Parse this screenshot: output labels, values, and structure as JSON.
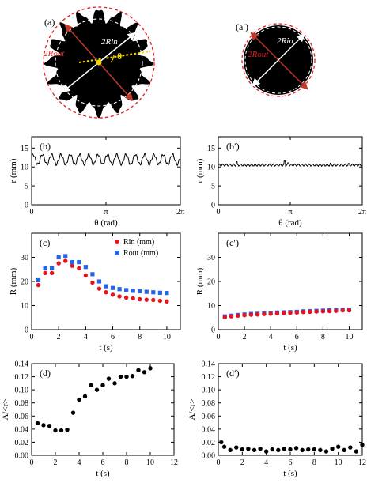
{
  "panels": {
    "a": {
      "label": "(a)",
      "rout_label": "2Rout",
      "rin_label": "2Rin",
      "theta_label": "θ",
      "colors": {
        "blob": "#000000",
        "outer_circle": "#e02020",
        "inner_circle": "#ffffff",
        "rout_arrow": "#c0392b",
        "rin_arrow": "#ffffff",
        "theta_line": "#f2d600"
      }
    },
    "a_prime": {
      "label": "(a′)",
      "rout_label": "2Rout",
      "rin_label": "2Rin",
      "colors": {
        "blob": "#000000",
        "outer_circle": "#e02020",
        "inner_circle": "#ffffff",
        "rout_arrow": "#c0392b",
        "rin_arrow": "#ffffff"
      }
    }
  },
  "chart_data": [
    {
      "id": "b",
      "type": "line",
      "panel_label": "(b)",
      "xlabel": "θ (rad)",
      "ylabel": "r (mm)",
      "xlim": [
        0,
        6.2832
      ],
      "ylim": [
        0,
        18
      ],
      "x_tick_labels": [
        "0",
        "π",
        "2π"
      ],
      "y_tick_labels": [
        "0",
        "5",
        "10",
        "15"
      ],
      "series": [
        {
          "x_range": [
            0,
            6.2832
          ],
          "mean": 12.0,
          "amplitude": 1.3,
          "periods": 16,
          "phase": 0.6,
          "color": "#000000"
        }
      ]
    },
    {
      "id": "b_prime",
      "type": "line",
      "panel_label": "(b′)",
      "xlabel": "θ (rad)",
      "ylabel": "r (mm)",
      "xlim": [
        0,
        6.2832
      ],
      "ylim": [
        0,
        18
      ],
      "x_tick_labels": [
        "0",
        "π",
        "2π"
      ],
      "y_tick_labels": [
        "0",
        "5",
        "10",
        "15"
      ],
      "series": [
        {
          "x_range": [
            0,
            6.2832
          ],
          "mean": 10.5,
          "amplitude": 0.25,
          "periods": 40,
          "phase": 0,
          "color": "#000000",
          "spikes": [
            [
              0.8,
              11.4
            ],
            [
              2.9,
              11.6
            ],
            [
              3.05,
              11.1
            ],
            [
              4.9,
              11.0
            ],
            [
              5.7,
              10.9
            ]
          ]
        }
      ]
    },
    {
      "id": "c",
      "type": "scatter",
      "panel_label": "(c)",
      "xlabel": "t (s)",
      "ylabel": "R (mm)",
      "xlim": [
        0,
        11
      ],
      "ylim": [
        0,
        40
      ],
      "x_ticks": [
        0,
        2,
        4,
        6,
        8,
        10
      ],
      "y_ticks": [
        0,
        10,
        20,
        30
      ],
      "legend": "top-right",
      "series": [
        {
          "name": "Rin (mm)",
          "color": "#e8141c",
          "marker": "circle",
          "x": [
            0.5,
            1.0,
            1.5,
            2.0,
            2.5,
            3.0,
            3.5,
            4.0,
            4.5,
            5.0,
            5.5,
            6.0,
            6.5,
            7.0,
            7.5,
            8.0,
            8.5,
            9.0,
            9.5,
            10.0
          ],
          "y": [
            18.5,
            23.5,
            23.5,
            27.5,
            28.5,
            26.5,
            25.5,
            22.5,
            19.5,
            17.0,
            15.5,
            14.5,
            13.8,
            13.3,
            13.0,
            12.6,
            12.4,
            12.3,
            12.0,
            11.7
          ]
        },
        {
          "name": "Rout (mm)",
          "color": "#2563eb",
          "marker": "square",
          "x": [
            0.5,
            1.0,
            1.5,
            2.0,
            2.5,
            3.0,
            3.5,
            4.0,
            4.5,
            5.0,
            5.5,
            6.0,
            6.5,
            7.0,
            7.5,
            8.0,
            8.5,
            9.0,
            9.5,
            10.0
          ],
          "y": [
            20.5,
            25.5,
            25.5,
            30.0,
            30.5,
            28.0,
            28.0,
            26.0,
            23.0,
            20.0,
            18.0,
            17.3,
            16.8,
            16.4,
            16.1,
            15.9,
            15.7,
            15.5,
            15.3,
            15.2
          ]
        }
      ]
    },
    {
      "id": "c_prime",
      "type": "scatter",
      "panel_label": "(c′)",
      "xlabel": "t (s)",
      "ylabel": "R (mm)",
      "xlim": [
        0,
        11
      ],
      "ylim": [
        0,
        40
      ],
      "x_ticks": [
        0,
        2,
        4,
        6,
        8,
        10
      ],
      "y_ticks": [
        0,
        10,
        20,
        30
      ],
      "series": [
        {
          "name": "Rout (mm)",
          "color": "#2563eb",
          "marker": "square",
          "x": [
            0.5,
            1.0,
            1.5,
            2.0,
            2.5,
            3.0,
            3.5,
            4.0,
            4.5,
            5.0,
            5.5,
            6.0,
            6.5,
            7.0,
            7.5,
            8.0,
            8.5,
            9.0,
            9.5,
            10.0
          ],
          "y": [
            5.5,
            5.8,
            6.1,
            6.3,
            6.5,
            6.6,
            6.8,
            6.9,
            7.1,
            7.2,
            7.3,
            7.4,
            7.6,
            7.7,
            7.8,
            7.9,
            8.0,
            8.1,
            8.3,
            8.3
          ]
        },
        {
          "name": "Rin (mm)",
          "color": "#e8141c",
          "marker": "circle",
          "x": [
            0.5,
            1.0,
            1.5,
            2.0,
            2.5,
            3.0,
            3.5,
            4.0,
            4.5,
            5.0,
            5.5,
            6.0,
            6.5,
            7.0,
            7.5,
            8.0,
            8.5,
            9.0,
            9.5,
            10.0
          ],
          "y": [
            5.2,
            5.5,
            5.8,
            6.0,
            6.2,
            6.3,
            6.5,
            6.6,
            6.8,
            6.9,
            7.0,
            7.1,
            7.3,
            7.4,
            7.5,
            7.6,
            7.7,
            7.8,
            8.0,
            8.0
          ]
        }
      ]
    },
    {
      "id": "d",
      "type": "scatter",
      "panel_label": "(d)",
      "xlabel": "t (s)",
      "ylabel": "A/<r>",
      "xlim": [
        0,
        12
      ],
      "ylim": [
        0,
        0.14
      ],
      "x_ticks": [
        0,
        2,
        4,
        6,
        8,
        10,
        12
      ],
      "y_ticks": [
        0,
        0.02,
        0.04,
        0.06,
        0.08,
        0.1,
        0.12,
        0.14
      ],
      "y_tick_labels": [
        "0.00",
        "0.02",
        "0.04",
        "0.06",
        "0.08",
        "0.10",
        "0.12",
        "0.14"
      ],
      "series": [
        {
          "color": "#000000",
          "marker": "circle",
          "x": [
            0.5,
            1.0,
            1.5,
            2.0,
            2.5,
            3.0,
            3.5,
            4.0,
            4.5,
            5.0,
            5.5,
            6.0,
            6.5,
            7.0,
            7.5,
            8.0,
            8.5,
            9.0,
            9.5,
            10.0
          ],
          "y": [
            0.049,
            0.046,
            0.045,
            0.038,
            0.038,
            0.039,
            0.065,
            0.085,
            0.09,
            0.107,
            0.1,
            0.107,
            0.117,
            0.11,
            0.12,
            0.12,
            0.121,
            0.13,
            0.127,
            0.133
          ]
        }
      ]
    },
    {
      "id": "d_prime",
      "type": "scatter",
      "panel_label": "(d′)",
      "xlabel": "t (s)",
      "ylabel": "A/<r>",
      "xlim": [
        0,
        12
      ],
      "ylim": [
        0,
        0.14
      ],
      "x_ticks": [
        0,
        2,
        4,
        6,
        8,
        10,
        12
      ],
      "y_ticks": [
        0,
        0.02,
        0.04,
        0.06,
        0.08,
        0.1,
        0.12,
        0.14
      ],
      "y_tick_labels": [
        "0.00",
        "0.02",
        "0.04",
        "0.06",
        "0.08",
        "0.10",
        "0.12",
        "0.14"
      ],
      "series": [
        {
          "color": "#000000",
          "marker": "circle",
          "x": [
            0.25,
            0.5,
            1.0,
            1.5,
            2.0,
            2.5,
            3.0,
            3.5,
            4.0,
            4.5,
            5.0,
            5.5,
            6.0,
            6.5,
            7.0,
            7.5,
            8.0,
            8.5,
            9.0,
            9.5,
            10.0,
            10.5,
            11.0,
            11.5,
            12.0
          ],
          "y": [
            0.02,
            0.013,
            0.008,
            0.012,
            0.009,
            0.01,
            0.008,
            0.01,
            0.006,
            0.009,
            0.008,
            0.01,
            0.009,
            0.011,
            0.008,
            0.009,
            0.009,
            0.008,
            0.006,
            0.01,
            0.013,
            0.008,
            0.012,
            0.006,
            0.016
          ]
        }
      ]
    }
  ]
}
